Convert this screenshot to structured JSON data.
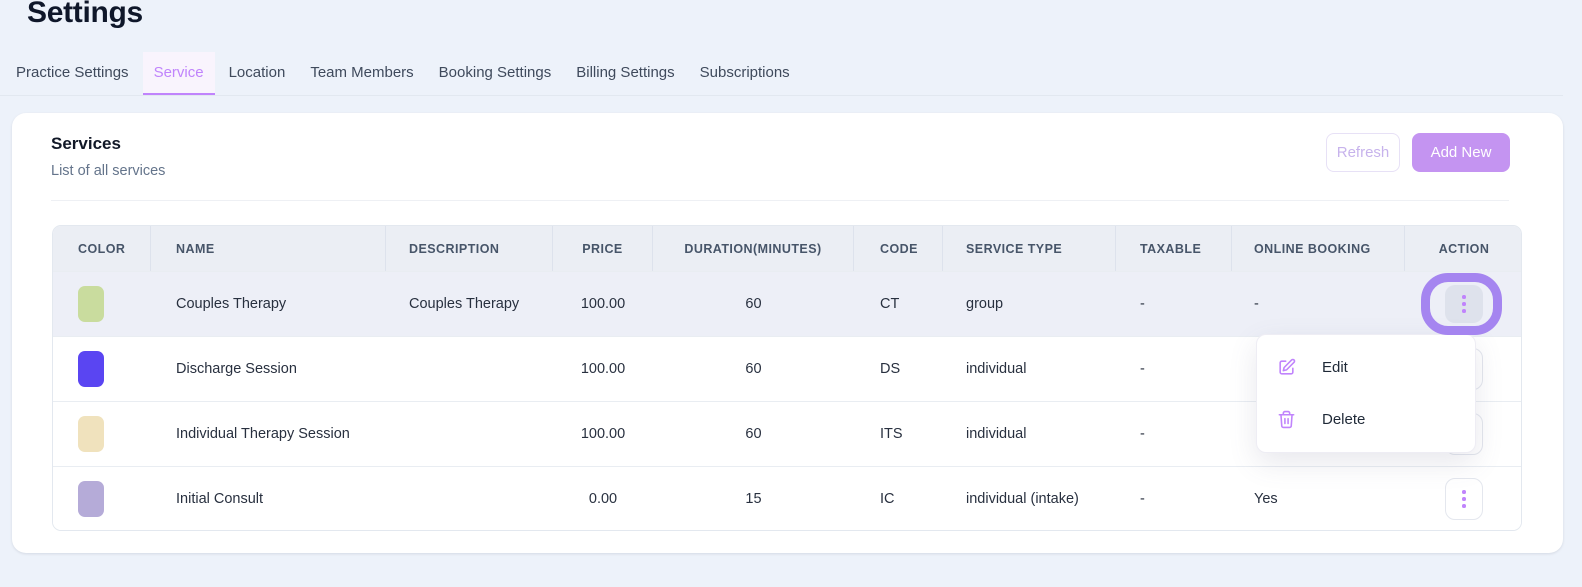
{
  "page": {
    "title": "Settings"
  },
  "tabs": [
    {
      "label": "Practice Settings",
      "active": false
    },
    {
      "label": "Service",
      "active": true
    },
    {
      "label": "Location",
      "active": false
    },
    {
      "label": "Team Members",
      "active": false
    },
    {
      "label": "Booking Settings",
      "active": false
    },
    {
      "label": "Billing Settings",
      "active": false
    },
    {
      "label": "Subscriptions",
      "active": false
    }
  ],
  "panel": {
    "title": "Services",
    "subtitle": "List of all services",
    "refresh_label": "Refresh",
    "add_new_label": "Add New"
  },
  "table": {
    "columns": [
      "COLOR",
      "NAME",
      "DESCRIPTION",
      "PRICE",
      "DURATION(MINUTES)",
      "CODE",
      "SERVICE TYPE",
      "TAXABLE",
      "ONLINE BOOKING",
      "ACTION"
    ],
    "rows": [
      {
        "color": "#c9dc9e",
        "name": "Couples Therapy",
        "description": "Couples Therapy",
        "price": "100.00",
        "duration": "60",
        "code": "CT",
        "service_type": "group",
        "taxable": "-",
        "online_booking": "-",
        "highlighted": true
      },
      {
        "color": "#5a45f2",
        "name": "Discharge Session",
        "description": "",
        "price": "100.00",
        "duration": "60",
        "code": "DS",
        "service_type": "individual",
        "taxable": "-",
        "online_booking": "",
        "highlighted": false
      },
      {
        "color": "#f0e2bd",
        "name": "Individual Therapy Session",
        "description": "",
        "price": "100.00",
        "duration": "60",
        "code": "ITS",
        "service_type": "individual",
        "taxable": "-",
        "online_booking": "",
        "highlighted": false
      },
      {
        "color": "#b5abd8",
        "name": "Initial Consult",
        "description": "",
        "price": "0.00",
        "duration": "15",
        "code": "IC",
        "service_type": "individual (intake)",
        "taxable": "-",
        "online_booking": "Yes",
        "highlighted": false
      }
    ]
  },
  "context_menu": {
    "items": [
      {
        "label": "Edit",
        "icon": "edit-icon"
      },
      {
        "label": "Delete",
        "icon": "trash-icon"
      }
    ]
  },
  "colors": {
    "accent": "#c084fc",
    "annotation_ring": "#a585f0",
    "add_new_bg": "#c494f1",
    "page_bg": "#edf2fa",
    "row_highlight": "#edeff7"
  }
}
